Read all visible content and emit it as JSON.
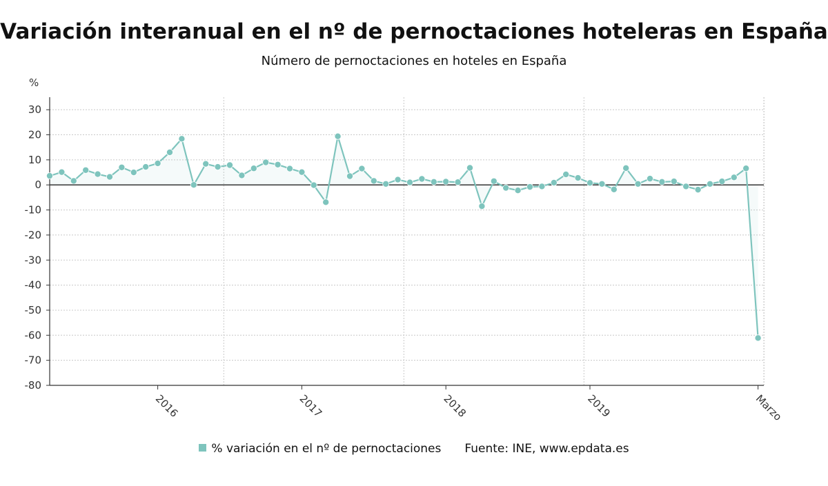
{
  "chart_data": {
    "type": "line",
    "title": "Variación interanual en el nº de pernoctaciones hoteleras en España",
    "subtitle": "Número de pernoctaciones en hoteles en España",
    "ylabel": "%",
    "ylim": [
      -80,
      35
    ],
    "yticks": [
      30,
      20,
      10,
      0,
      -10,
      -20,
      -30,
      -40,
      -50,
      -60,
      -70,
      -80
    ],
    "x_tick_labels": [
      "2016",
      "2017",
      "2018",
      "2019",
      "Marzo"
    ],
    "x_tick_indices": [
      9,
      21,
      33,
      45,
      59
    ],
    "series": [
      {
        "name": "% variación en el nº de pernoctaciones",
        "color": "#7ec4bd",
        "values": [
          3.6,
          5.1,
          1.6,
          5.9,
          4.3,
          3.2,
          7.0,
          5.0,
          7.2,
          8.6,
          13.0,
          18.4,
          0.0,
          8.4,
          7.2,
          7.9,
          3.8,
          6.6,
          9.0,
          8.1,
          6.5,
          5.1,
          -0.1,
          -6.9,
          19.4,
          3.5,
          6.5,
          1.6,
          0.4,
          2.1,
          1.0,
          2.4,
          1.2,
          1.3,
          1.1,
          6.8,
          -8.5,
          1.5,
          -1.2,
          -2.2,
          -0.8,
          -0.6,
          0.9,
          4.2,
          2.8,
          0.8,
          0.4,
          -1.8,
          6.7,
          0.4,
          2.5,
          1.2,
          1.4,
          -0.6,
          -1.9,
          0.4,
          1.4,
          3.0,
          6.6,
          -61.1
        ]
      }
    ],
    "grid": true,
    "legend_position": "bottom",
    "source": "Fuente: INE, www.epdata.es"
  }
}
